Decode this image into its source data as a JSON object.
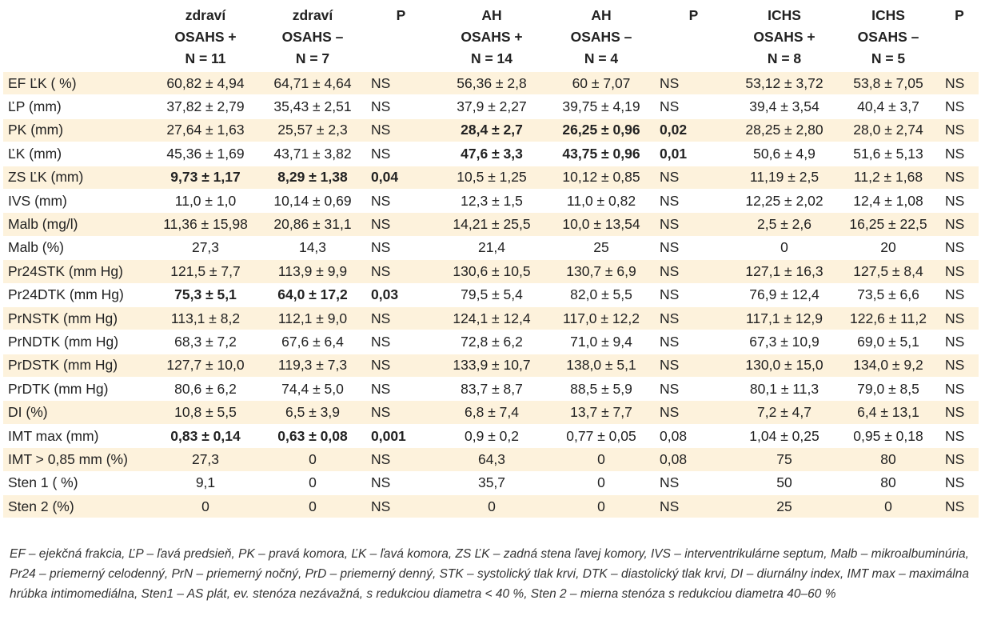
{
  "headers": [
    {
      "lines": [
        "",
        "",
        ""
      ]
    },
    {
      "lines": [
        "zdraví",
        "OSAHS +",
        "N = 11"
      ]
    },
    {
      "lines": [
        "zdraví",
        "OSAHS –",
        "N = 7"
      ]
    },
    {
      "lines": [
        "P",
        "",
        ""
      ]
    },
    {
      "lines": [
        "AH",
        "OSAHS +",
        "N = 14"
      ]
    },
    {
      "lines": [
        "AH",
        "OSAHS –",
        "N = 4"
      ]
    },
    {
      "lines": [
        "P",
        "",
        ""
      ]
    },
    {
      "lines": [
        "ICHS",
        "OSAHS +",
        "N = 8"
      ]
    },
    {
      "lines": [
        "ICHS",
        "OSAHS –",
        "N = 5"
      ]
    },
    {
      "lines": [
        "P",
        "",
        ""
      ]
    }
  ],
  "rows": [
    {
      "label": "EF ĽK ( %)",
      "cells": [
        "60,82 ± 4,94",
        "64,71 ± 4,64",
        "NS",
        "56,36 ± 2,8",
        "60 ± 7,07",
        "NS",
        "53,12 ± 3,72",
        "53,8 ± 7,05",
        "NS"
      ],
      "bold": []
    },
    {
      "label": "ĽP (mm)",
      "cells": [
        "37,82 ± 2,79",
        "35,43 ± 2,51",
        "NS",
        "37,9 ± 2,27",
        "39,75 ± 4,19",
        "NS",
        "39,4 ± 3,54",
        "40,4 ± 3,7",
        "NS"
      ],
      "bold": []
    },
    {
      "label": "PK (mm)",
      "cells": [
        "27,64 ± 1,63",
        "25,57 ± 2,3",
        "NS",
        "28,4 ± 2,7",
        "26,25 ± 0,96",
        "0,02",
        "28,25 ± 2,80",
        "28,0 ± 2,74",
        "NS"
      ],
      "bold": [
        3,
        4,
        5
      ]
    },
    {
      "label": "ĽK (mm)",
      "cells": [
        "45,36 ± 1,69",
        "43,71 ± 3,82",
        "NS",
        "47,6 ± 3,3",
        "43,75 ± 0,96",
        "0,01",
        "50,6 ± 4,9",
        "51,6 ± 5,13",
        "NS"
      ],
      "bold": [
        3,
        4,
        5
      ]
    },
    {
      "label": "ZS ĽK (mm)",
      "cells": [
        "9,73 ± 1,17",
        "8,29 ± 1,38",
        "0,04",
        "10,5 ± 1,25",
        "10,12 ± 0,85",
        "NS",
        "11,19 ± 2,5",
        "11,2 ± 1,68",
        "NS"
      ],
      "bold": [
        0,
        1,
        2
      ]
    },
    {
      "label": "IVS (mm)",
      "cells": [
        "11,0 ± 1,0",
        "10,14 ± 0,69",
        "NS",
        "12,3 ± 1,5",
        "11,0 ± 0,82",
        "NS",
        "12,25 ± 2,02",
        "12,4 ± 1,08",
        "NS"
      ],
      "bold": []
    },
    {
      "label": "Malb (mg/l)",
      "cells": [
        "11,36 ± 15,98",
        "20,86 ± 31,1",
        "NS",
        "14,21 ± 25,5",
        "10,0 ± 13,54",
        "NS",
        "2,5 ± 2,6",
        "16,25 ± 22,5",
        "NS"
      ],
      "bold": []
    },
    {
      "label": "Malb (%)",
      "cells": [
        "27,3",
        "14,3",
        "NS",
        "21,4",
        "25",
        "NS",
        "0",
        "20",
        "NS"
      ],
      "bold": []
    },
    {
      "label": "Pr24STK (mm Hg)",
      "cells": [
        "121,5 ± 7,7",
        "113,9 ± 9,9",
        "NS",
        "130,6 ± 10,5",
        "130,7 ± 6,9",
        "NS",
        "127,1 ± 16,3",
        "127,5 ± 8,4",
        "NS"
      ],
      "bold": []
    },
    {
      "label": "Pr24DTK (mm Hg)",
      "cells": [
        "75,3 ± 5,1",
        "64,0 ± 17,2",
        "0,03",
        "79,5 ± 5,4",
        "82,0 ± 5,5",
        "NS",
        "76,9 ± 12,4",
        "73,5 ± 6,6",
        "NS"
      ],
      "bold": [
        0,
        1,
        2
      ]
    },
    {
      "label": "PrNSTK (mm Hg)",
      "cells": [
        "113,1 ± 8,2",
        "112,1 ± 9,0",
        "NS",
        "124,1 ± 12,4",
        "117,0 ± 12,2",
        "NS",
        "117,1 ± 12,9",
        "122,6 ± 11,2",
        "NS"
      ],
      "bold": []
    },
    {
      "label": "PrNDTK (mm Hg)",
      "cells": [
        "68,3 ± 7,2",
        "67,6 ± 6,4",
        "NS",
        "72,8 ± 6,2",
        "71,0 ± 9,4",
        "NS",
        "67,3 ± 10,9",
        "69,0 ± 5,1",
        "NS"
      ],
      "bold": []
    },
    {
      "label": "PrDSTK (mm Hg)",
      "cells": [
        "127,7 ± 10,0",
        "119,3 ± 7,3",
        "NS",
        "133,9 ± 10,7",
        "138,0 ± 5,1",
        "NS",
        "130,0 ± 15,0",
        "134,0 ± 9,2",
        "NS"
      ],
      "bold": []
    },
    {
      "label": "PrDTK (mm Hg)",
      "cells": [
        "80,6 ± 6,2",
        "74,4 ± 5,0",
        "NS",
        "83,7 ± 8,7",
        "88,5 ± 5,9",
        "NS",
        "80,1 ± 11,3",
        "79,0 ± 8,5",
        "NS"
      ],
      "bold": []
    },
    {
      "label": "DI (%)",
      "cells": [
        "10,8 ± 5,5",
        "6,5 ± 3,9",
        "NS",
        "6,8 ± 7,4",
        "13,7 ± 7,7",
        "NS",
        "7,2 ± 4,7",
        "6,4 ± 13,1",
        "NS"
      ],
      "bold": []
    },
    {
      "label": "IMT max (mm)",
      "cells": [
        "0,83 ± 0,14",
        "0,63 ± 0,08",
        "0,001",
        "0,9 ± 0,2",
        "0,77 ± 0,05",
        "0,08",
        "1,04 ± 0,25",
        "0,95 ± 0,18",
        "NS"
      ],
      "bold": [
        0,
        1,
        2
      ]
    },
    {
      "label": "IMT > 0,85 mm (%)",
      "cells": [
        "27,3",
        "0",
        "NS",
        "64,3",
        "0",
        "0,08",
        "75",
        "80",
        "NS"
      ],
      "bold": []
    },
    {
      "label": "Sten 1 ( %)",
      "cells": [
        "9,1",
        "0",
        "NS",
        "35,7",
        "0",
        "NS",
        "50",
        "80",
        "NS"
      ],
      "bold": []
    },
    {
      "label": "Sten 2 (%)",
      "cells": [
        "0",
        "0",
        "NS",
        "0",
        "0",
        "NS",
        "25",
        "0",
        "NS"
      ],
      "bold": []
    }
  ],
  "legend": "EF – ejekčná frakcia, ĽP – ľavá predsieň, PK – pravá komora, ĽK – ľavá komora, ZS ĽK – zadná stena ľavej komory, IVS – interventrikulárne septum, Malb – mikroalbuminúria, Pr24 – priemerný celodenný, PrN – priemerný nočný, PrD – priemerný denný, STK – systolický tlak krvi, DTK – diastolický tlak krvi, DI – diurnálny index, IMT max – maximálna hrúbka intimomediálna, Sten1 – AS plát, ev. stenóza nezávažná, s redukciou diametra < 40 %, Sten 2 – mierna stenóza s redukciou diametra 40–60 %",
  "colors": {
    "row_shade": "#fdf2dc",
    "text": "#222222"
  }
}
